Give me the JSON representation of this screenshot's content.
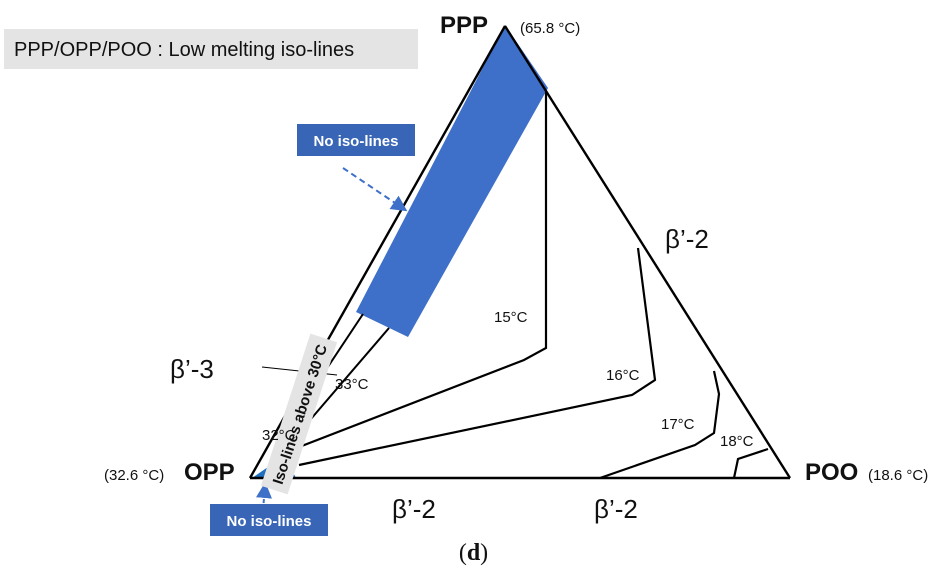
{
  "title_box": "PPP/OPP/POO : Low melting iso-lines",
  "vertices": {
    "top": {
      "name": "PPP",
      "temp": "(65.8 °C)"
    },
    "left": {
      "name": "OPP",
      "temp": "(32.6 °C)"
    },
    "right": {
      "name": "POO",
      "temp": "(18.6 °C)"
    }
  },
  "regions": {
    "no_iso_top": "No iso-lines",
    "no_iso_bottom": "No iso-lines",
    "above_30": "Iso-lines above 30°C"
  },
  "phases": {
    "right_edge": "β’-2",
    "left": "β’-3",
    "bottom_left": "β’-2",
    "bottom_right": "β’-2"
  },
  "isotherms": {
    "t15": "15°C",
    "t16": "16°C",
    "t17": "17°C",
    "t18": "18°C",
    "t32": "32°C",
    "t33": "33°C"
  },
  "caption": {
    "open": "(",
    "letter": "d",
    "close": ")"
  },
  "colors": {
    "blue": "#3e6fc9",
    "label_bg": "#3865b5",
    "grey_box": "#e4e4e4"
  }
}
